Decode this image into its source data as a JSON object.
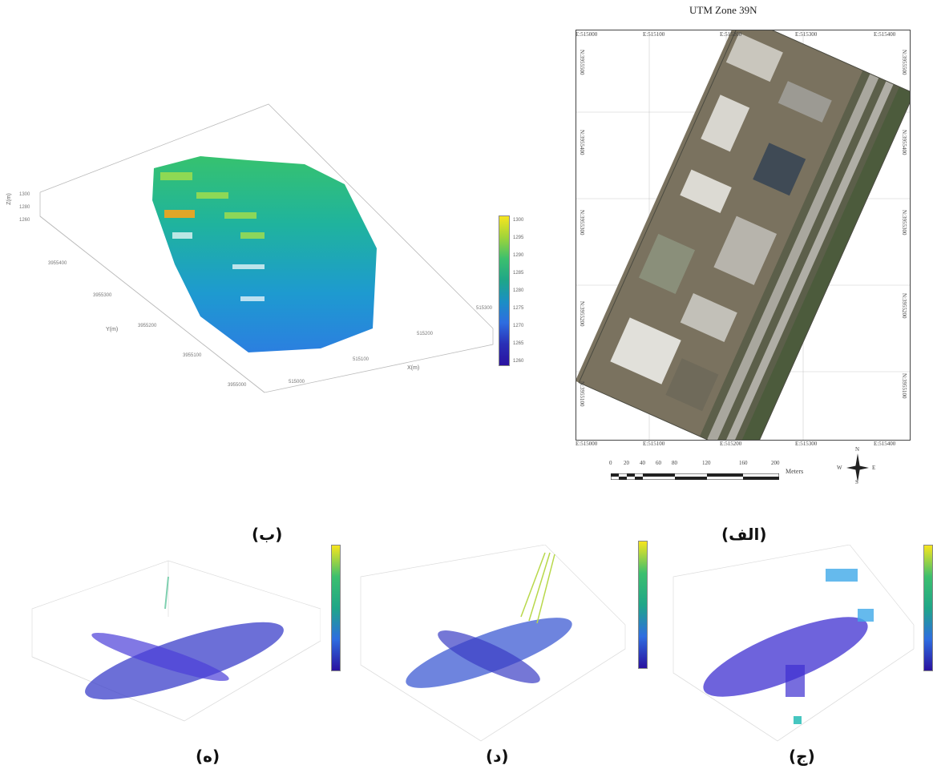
{
  "map": {
    "title": "UTM Zone 39N",
    "top_ticks": [
      "E:515000",
      "E:515100",
      "E:515200",
      "E:515300",
      "E:515400"
    ],
    "bottom_ticks": [
      "E:515000",
      "E:515100",
      "E:515200",
      "E:515300",
      "E:515400"
    ],
    "left_ticks": [
      "N:3955500",
      "N:3955400",
      "N:3955300",
      "N:3955200",
      "N:3955100"
    ],
    "right_ticks": [
      "N:3955500",
      "N:3955400",
      "N:3955300",
      "N:3955200",
      "N:3955100"
    ],
    "scale_labels": [
      "0",
      "20",
      "40",
      "60",
      "80",
      "120",
      "160",
      "200"
    ],
    "scale_unit": "Meters",
    "compass": {
      "n": "N",
      "s": "S",
      "e": "E",
      "w": "W"
    }
  },
  "plot_b": {
    "zlabel": "Z(m)",
    "ylabel": "Y(m)",
    "xlabel": "X(m)",
    "z_ticks": [
      "1300",
      "1280",
      "1260"
    ],
    "y_ticks": [
      "3955400",
      "3955300",
      "3955200",
      "3955100",
      "3955000"
    ],
    "x_ticks": [
      "515000",
      "515100",
      "515200",
      "515300"
    ],
    "colorbar_ticks": [
      "1300",
      "1295",
      "1290",
      "1285",
      "1280",
      "1275",
      "1270",
      "1265",
      "1260"
    ]
  },
  "captions": {
    "alef": "(الف)",
    "be": "(ب)",
    "je": "(ج)",
    "dal": "(د)",
    "he": "(ه)"
  },
  "colors": {
    "viridis_top": "#f7e51e",
    "viridis_mid": "#1fa688",
    "viridis_low": "#3b4cc0",
    "viridis_bottom": "#2a12a0"
  }
}
